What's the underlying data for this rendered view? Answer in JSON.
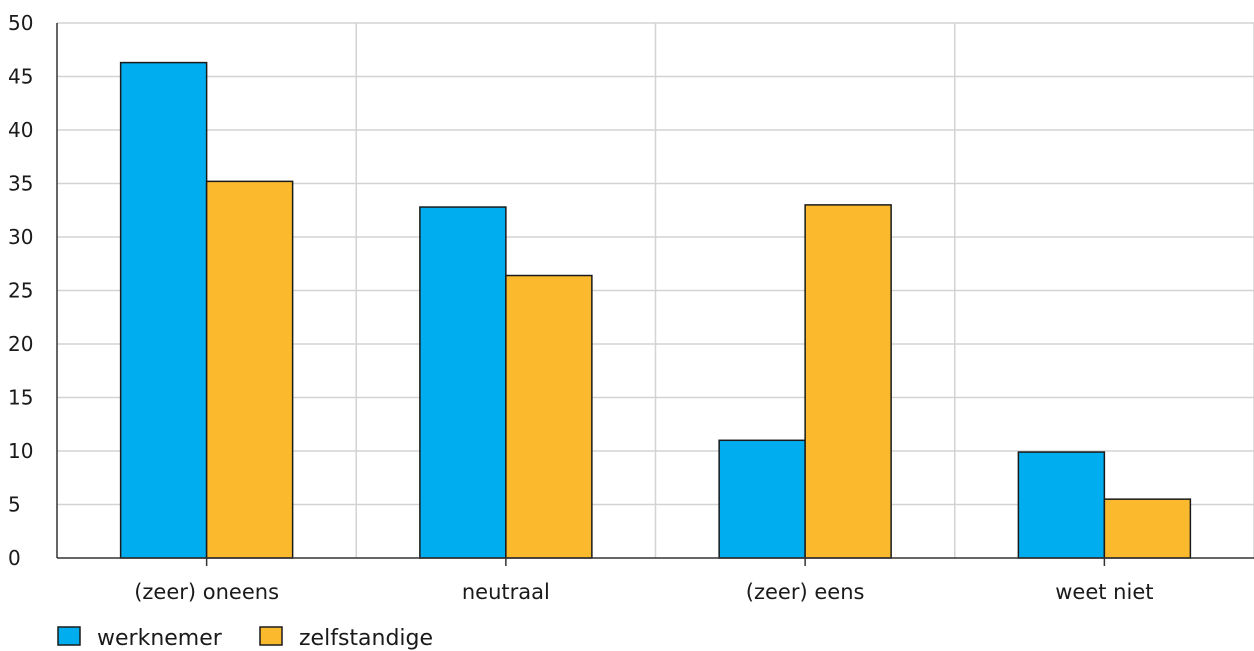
{
  "chart_data": {
    "type": "bar",
    "categories": [
      "(zeer) oneens",
      "neutraal",
      "(zeer) eens",
      "weet niet"
    ],
    "series": [
      {
        "name": "werknemer",
        "values": [
          46.3,
          32.8,
          11.0,
          9.9
        ],
        "color": "#00aeef"
      },
      {
        "name": "zelfstandige",
        "values": [
          35.2,
          26.4,
          33.0,
          5.5
        ],
        "color": "#fbba2e"
      }
    ],
    "ylim": [
      0,
      50
    ],
    "yticks": [
      0,
      5,
      10,
      15,
      20,
      25,
      30,
      35,
      40,
      45,
      50
    ],
    "grid": true,
    "legend_position": "bottom-left",
    "title": "",
    "xlabel": "",
    "ylabel": ""
  }
}
